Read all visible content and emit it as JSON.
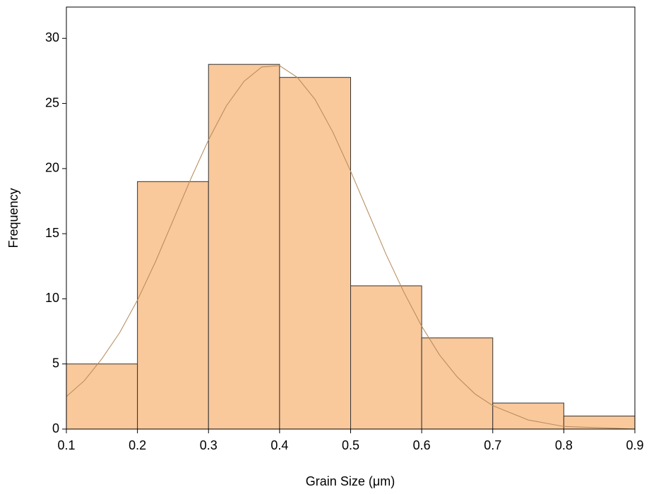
{
  "chart_data": {
    "type": "histogram",
    "x_label": "Grain Size (μm)",
    "y_label": "Frequency",
    "bins": [
      0.1,
      0.2,
      0.3,
      0.4,
      0.5,
      0.6,
      0.7,
      0.8,
      0.9
    ],
    "values": [
      5,
      19,
      28,
      27,
      11,
      7,
      2,
      1
    ],
    "color": "#f9c89b",
    "edge_color": "#333333",
    "xlim": [
      0.1,
      0.9
    ],
    "xticks": [
      0.1,
      0.2,
      0.3,
      0.4,
      0.5,
      0.6,
      0.7,
      0.8,
      0.9
    ],
    "ylim": [
      0,
      32.4
    ],
    "yticks": [
      0,
      5,
      10,
      15,
      20,
      25,
      30
    ],
    "fit": {
      "color": "#b5895a",
      "x": [
        0.1,
        0.125,
        0.15,
        0.175,
        0.2,
        0.225,
        0.25,
        0.275,
        0.3,
        0.325,
        0.35,
        0.375,
        0.4,
        0.425,
        0.45,
        0.475,
        0.5,
        0.525,
        0.55,
        0.575,
        0.6,
        0.625,
        0.65,
        0.675,
        0.7,
        0.75,
        0.8,
        0.85,
        0.9
      ],
      "y": [
        2.5,
        3.7,
        5.4,
        7.4,
        9.9,
        12.8,
        16.0,
        19.2,
        22.2,
        24.8,
        26.7,
        27.8,
        27.9,
        27.0,
        25.3,
        22.8,
        19.8,
        16.6,
        13.4,
        10.5,
        7.9,
        5.7,
        4.0,
        2.7,
        1.8,
        0.7,
        0.2,
        0.1,
        0.0
      ]
    }
  }
}
